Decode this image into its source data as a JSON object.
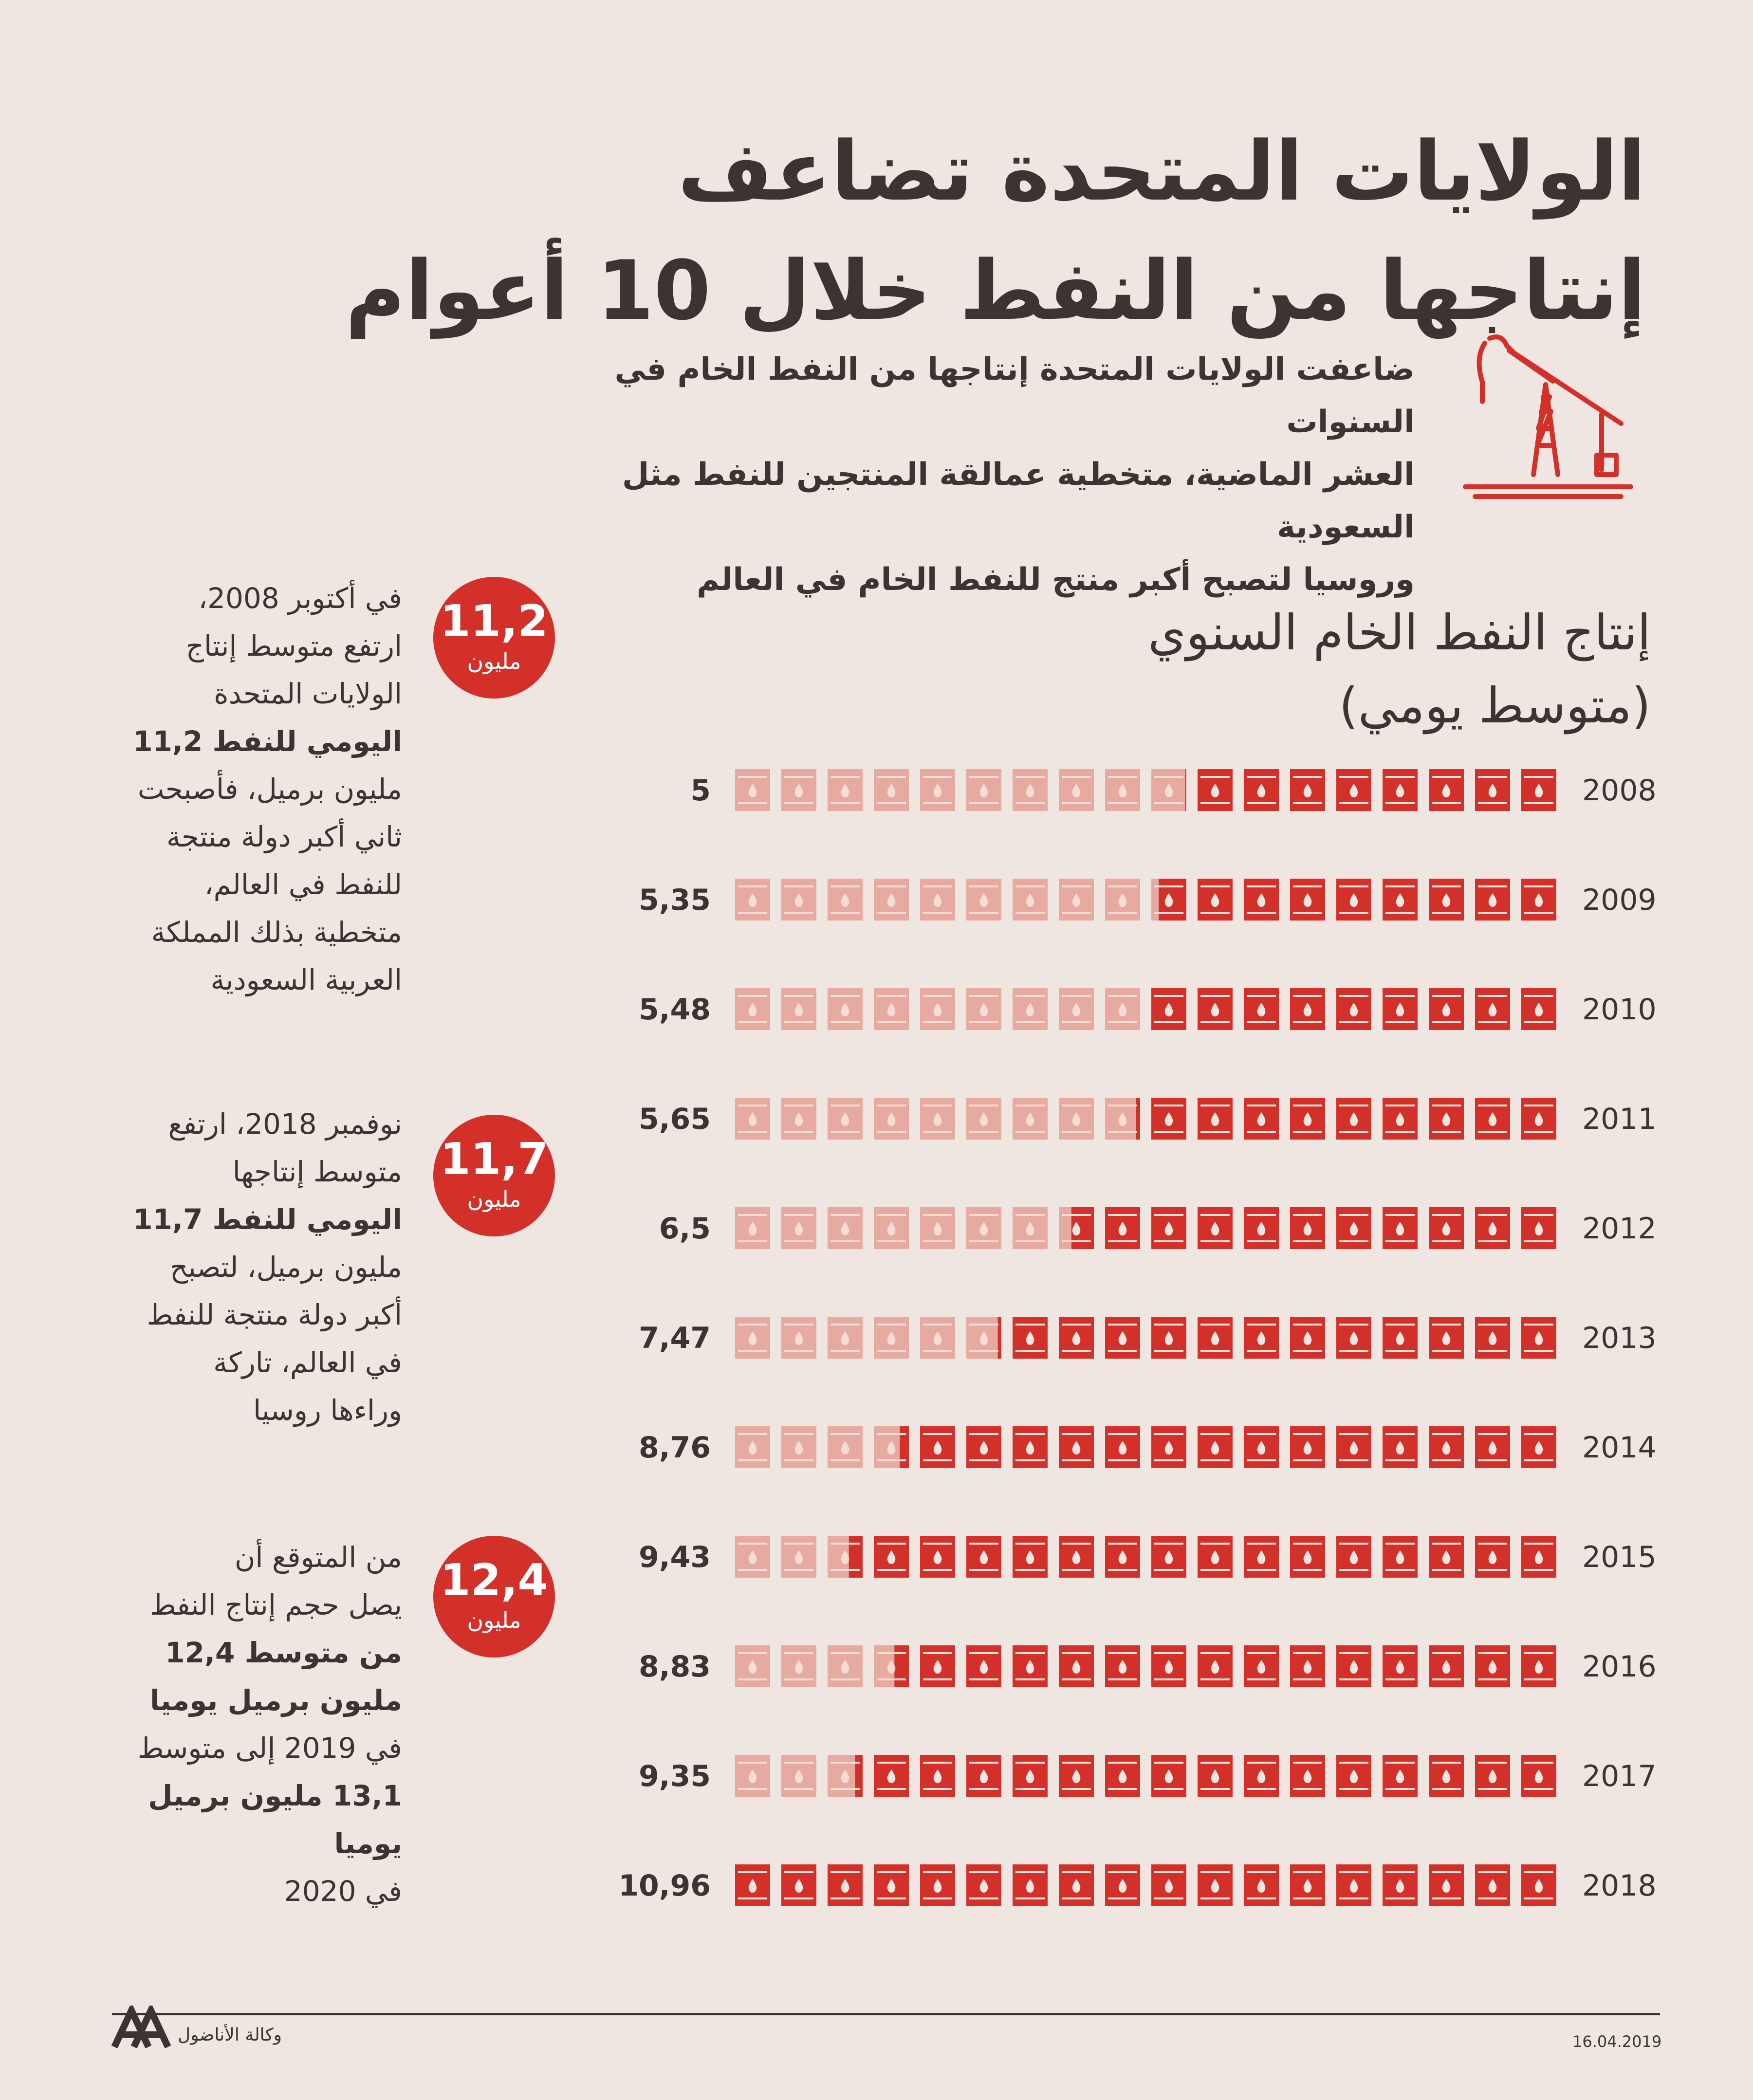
{
  "title": {
    "line1": "الولايات المتحدة تضاعف",
    "line2": "إنتاجها من النفط خلال 10 أعوام"
  },
  "intro": {
    "line1": "ضاعفت الولايات المتحدة إنتاجها من النفط الخام في السنوات",
    "line2": "العشر الماضية، متخطية عمالقة المنتجين للنفط مثل السعودية",
    "line3": "وروسيا لتصبح أكبر منتج للنفط الخام في العالم"
  },
  "colors": {
    "accent": "#d4302a",
    "light": "#e7aaa0",
    "text": "#3b3433",
    "background": "#efe6e1"
  },
  "icons": {
    "header": "pumpjack-icon",
    "bar_unit": "oil-barrel-icon",
    "logo": "aa-logo"
  },
  "chart_data": {
    "type": "bar",
    "orientation": "horizontal",
    "title": "إنتاج النفط الخام السنوي",
    "subtitle": "(متوسط يومي)",
    "categories": [
      "2008",
      "2009",
      "2010",
      "2011",
      "2012",
      "2013",
      "2014",
      "2015",
      "2016",
      "2017",
      "2018"
    ],
    "values": [
      5,
      5.35,
      5.48,
      5.65,
      6.5,
      7.47,
      8.76,
      9.43,
      8.83,
      9.35,
      10.96
    ],
    "value_labels": [
      "5",
      "5,35",
      "5,48",
      "5,65",
      "6,5",
      "7,47",
      "8,76",
      "9,43",
      "8,83",
      "9,35",
      "10,96"
    ],
    "xlim": [
      0,
      10.96
    ],
    "direction": "right-to-left",
    "grid": false
  },
  "callouts": [
    {
      "value": "11,2",
      "unit": "مليون",
      "lines": [
        "في أكتوبر 2008،",
        "ارتفع متوسط إنتاج",
        "الولايات المتحدة",
        "اليومي للنفط 11,2",
        "مليون برميل، فأصبحت",
        "ثاني أكبر دولة منتجة",
        "للنفط في العالم،",
        "متخطية بذلك المملكة",
        "العربية السعودية"
      ]
    },
    {
      "value": "11,7",
      "unit": "مليون",
      "lines": [
        "نوفمبر 2018، ارتفع",
        "متوسط إنتاجها",
        "اليومي للنفط 11,7",
        "مليون برميل، لتصبح",
        "أكبر دولة منتجة للنفط",
        "في العالم، تاركة",
        "وراءها روسيا"
      ]
    },
    {
      "value": "12,4",
      "unit": "مليون",
      "lines": [
        "من المتوقع أن",
        "يصل حجم إنتاج النفط",
        "من متوسط 12,4",
        "مليون برميل يوميا",
        "في 2019 إلى متوسط",
        "13,1 مليون برميل يوميا",
        "في 2020"
      ]
    }
  ],
  "footer": {
    "date": "16.04.2019",
    "agency": "وكالة الأناضول",
    "logo_text": "AA"
  }
}
